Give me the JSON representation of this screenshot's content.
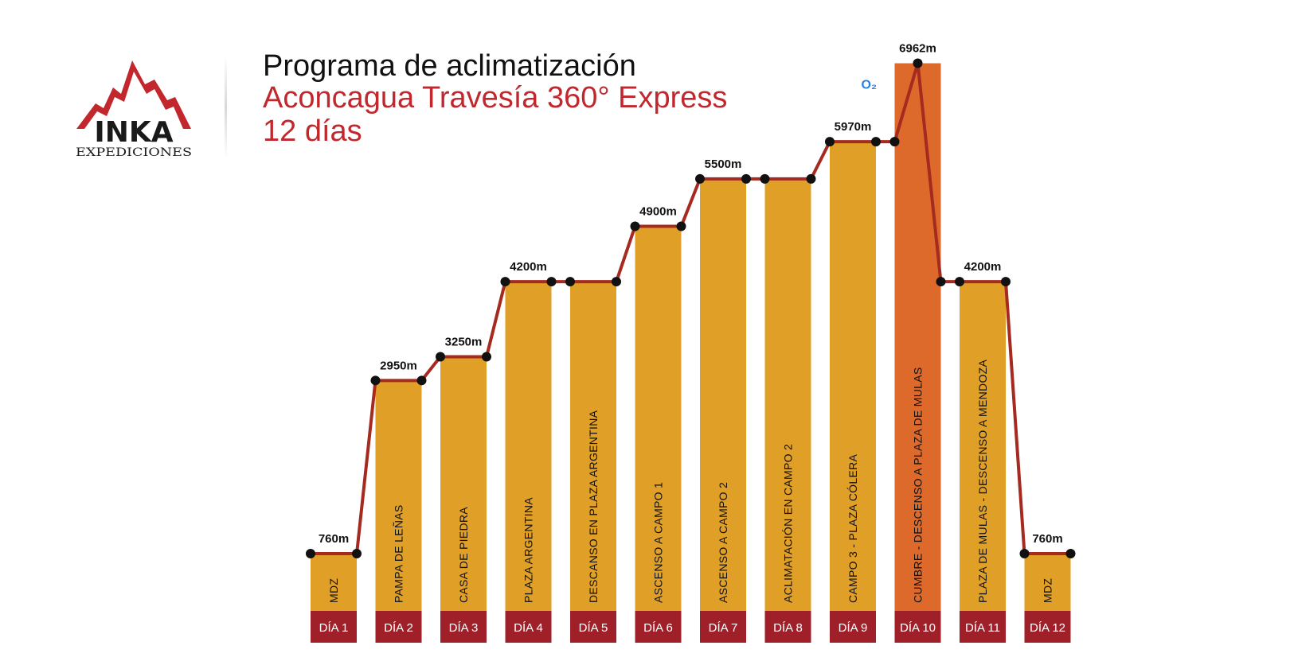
{
  "header": {
    "title": "Programa de aclimatización",
    "subtitle": "Aconcagua Travesía 360° Express",
    "duration": "12 días"
  },
  "logo": {
    "wordmark": "INKA",
    "tagline": "EXPEDICIONES"
  },
  "colors": {
    "bar": "#e09f26",
    "summit_bar": "#dd6a2b",
    "day_label_bg": "#a0202a",
    "line": "#a52a1f",
    "marker": "#111111",
    "brand_red": "#c1272d"
  },
  "annotation": {
    "summit_icon": "O₂"
  },
  "chart_data": {
    "type": "bar",
    "days": [
      "DÍA 1",
      "DÍA 2",
      "DÍA 3",
      "DÍA 4",
      "DÍA 5",
      "DÍA 6",
      "DÍA 7",
      "DÍA 8",
      "DÍA 9",
      "DÍA 10",
      "DÍA 11",
      "DÍA 12"
    ],
    "stages": [
      "MDZ",
      "PAMPA DE LEÑAS",
      "CASA DE PIEDRA",
      "PLAZA ARGENTINA",
      "DESCANSO EN PLAZA ARGENTINA",
      "ASCENSO A CAMPO 1",
      "ASCENSO A CAMPO 2",
      "ACLIMATACIÓN EN CAMPO 2",
      "CAMPO 3 - PLAZA CÓLERA",
      "CUMBRE - DESCENSO A PLAZA DE MULAS",
      "PLAZA DE MULAS - DESCENSO A MENDOZA",
      "MDZ"
    ],
    "altitudes_m": [
      760,
      2950,
      3250,
      4200,
      4200,
      4900,
      5500,
      5500,
      5970,
      6962,
      4200,
      760
    ],
    "altitude_labels": [
      "760m",
      "2950m",
      "3250m",
      "4200m",
      "",
      "4900m",
      "5500m",
      "",
      "5970m",
      "6962m",
      "4200m",
      "760m"
    ],
    "highlight_day": "DÍA 10",
    "ylabel": "",
    "xlabel": ""
  }
}
